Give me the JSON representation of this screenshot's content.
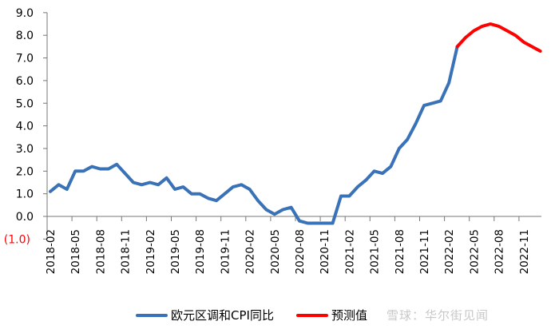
{
  "chart_data": {
    "type": "line",
    "title": "",
    "xlabel": "",
    "ylabel": "",
    "ylim": [
      -1.0,
      9.0
    ],
    "y_ticks": [
      "9.0",
      "8.0",
      "7.0",
      "6.0",
      "5.0",
      "4.0",
      "3.0",
      "2.0",
      "1.0",
      "0.0",
      "(1.0)"
    ],
    "x_tick_labels": [
      "2018-02",
      "2018-05",
      "2018-08",
      "2018-11",
      "2019-02",
      "2019-05",
      "2019-08",
      "2019-11",
      "2020-02",
      "2020-05",
      "2020-08",
      "2020-11",
      "2021-02",
      "2021-05",
      "2021-08",
      "2021-11",
      "2022-02",
      "2022-05",
      "2022-08",
      "2022-11"
    ],
    "grid": false,
    "legend_position": "bottom",
    "series": [
      {
        "name": "欧元区调和CPI同比",
        "color": "#3a72b8",
        "start": "2018-02",
        "values": [
          1.1,
          1.4,
          1.2,
          2.0,
          2.0,
          2.2,
          2.1,
          2.1,
          2.3,
          1.9,
          1.5,
          1.4,
          1.5,
          1.4,
          1.7,
          1.2,
          1.3,
          1.0,
          1.0,
          0.8,
          0.7,
          1.0,
          1.3,
          1.4,
          1.2,
          0.7,
          0.3,
          0.1,
          0.3,
          0.4,
          -0.2,
          -0.3,
          -0.3,
          -0.3,
          -0.3,
          0.9,
          0.9,
          1.3,
          1.6,
          2.0,
          1.9,
          2.2,
          3.0,
          3.4,
          4.1,
          4.9,
          5.0,
          5.1,
          5.9,
          7.5
        ]
      },
      {
        "name": "预测值",
        "color": "#ff0000",
        "start": "2022-03",
        "values": [
          7.5,
          7.9,
          8.2,
          8.4,
          8.5,
          8.4,
          8.2,
          8.0,
          7.7,
          7.5,
          7.3
        ]
      }
    ]
  },
  "legend": {
    "items": [
      {
        "label": "欧元区调和CPI同比",
        "color": "#3a72b8"
      },
      {
        "label": "预测值",
        "color": "#ff0000"
      }
    ]
  },
  "watermark": "雪球：华尔街见闻"
}
